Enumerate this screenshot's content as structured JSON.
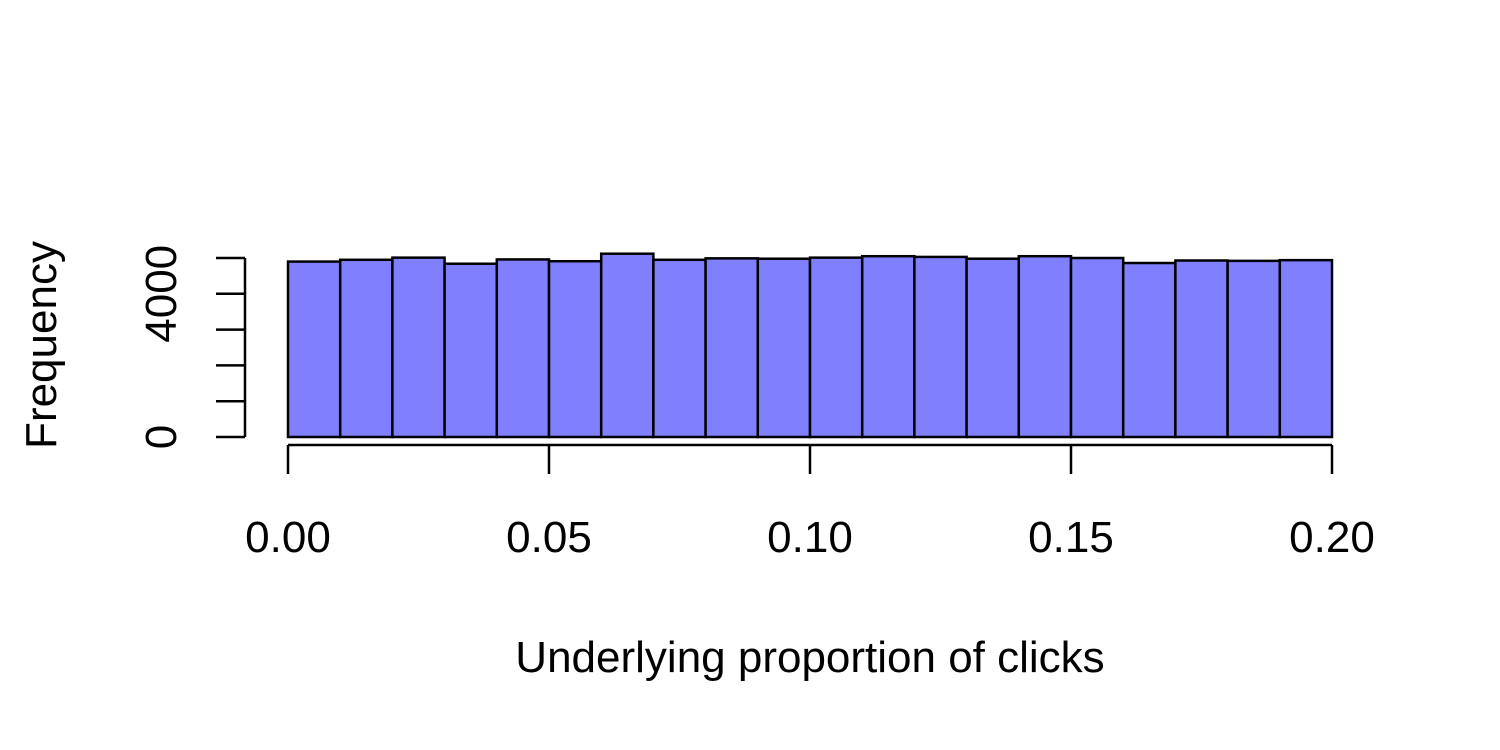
{
  "chart_data": {
    "type": "bar",
    "histogram": true,
    "bin_edges": [
      0.0,
      0.01,
      0.02,
      0.03,
      0.04,
      0.05,
      0.06,
      0.07,
      0.08,
      0.09,
      0.1,
      0.11,
      0.12,
      0.13,
      0.14,
      0.15,
      0.16,
      0.17,
      0.18,
      0.19,
      0.2
    ],
    "values": [
      4900,
      4950,
      5010,
      4840,
      4960,
      4910,
      5120,
      4950,
      4990,
      4980,
      5010,
      5050,
      5030,
      4980,
      5050,
      5000,
      4860,
      4930,
      4920,
      4940
    ],
    "title": "",
    "xlabel": "Underlying proportion of clicks",
    "ylabel": "Frequency",
    "xlim": [
      0.0,
      0.2
    ],
    "ylim": [
      0,
      5000
    ],
    "x_ticks": [
      0.0,
      0.05,
      0.1,
      0.15,
      0.2
    ],
    "x_tick_labels": [
      "0.00",
      "0.05",
      "0.10",
      "0.15",
      "0.20"
    ],
    "y_ticks": [
      0,
      1000,
      2000,
      3000,
      4000,
      5000
    ],
    "y_tick_labels": [
      "0",
      "",
      "",
      "",
      "4000",
      ""
    ],
    "grid": false,
    "legend": "none",
    "bar_color": "#8080ff",
    "edge_color": "#000000"
  }
}
